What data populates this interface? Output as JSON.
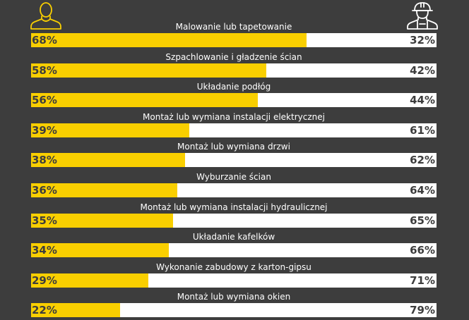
{
  "colors": {
    "background": "#3d3d3d",
    "diy": "#f9cf00",
    "professional": "#ffffff",
    "text_dark": "#3d3d3d"
  },
  "icons": {
    "left": "person-icon",
    "right": "worker-hardhat-icon"
  },
  "chart_data": {
    "type": "bar",
    "orientation": "horizontal",
    "stacked": true,
    "categories": [
      "Malowanie lub tapetowanie",
      "Szpachlowanie i gładzenie ścian",
      "Układanie podłóg",
      "Montaż lub wymiana instalacji elektrycznej",
      "Montaż lub wymiana drzwi",
      "Wyburzanie ścian",
      "Montaż lub wymiana instalacji hydraulicznej",
      "Układanie kafelków",
      "Wykonanie zabudowy z karton-gipsu",
      "Montaż lub wymiana okien"
    ],
    "series": [
      {
        "values": [
          68,
          58,
          56,
          39,
          38,
          36,
          35,
          34,
          29,
          22
        ]
      },
      {
        "values": [
          32,
          42,
          44,
          61,
          62,
          64,
          65,
          66,
          71,
          79
        ]
      }
    ],
    "left_labels": [
      "68%",
      "58%",
      "56%",
      "39%",
      "38%",
      "36%",
      "35%",
      "34%",
      "29%",
      "22%"
    ],
    "right_labels": [
      "32%",
      "42%",
      "44%",
      "61%",
      "62%",
      "64%",
      "65%",
      "66%",
      "71%",
      "79%"
    ],
    "xlim": [
      0,
      100
    ]
  }
}
